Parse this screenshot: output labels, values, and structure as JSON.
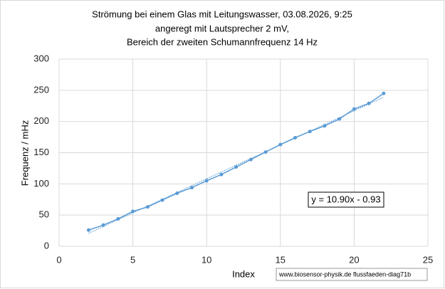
{
  "chart_data": {
    "type": "line",
    "title": [
      "Strömung bei einem Glas mit  Leitungswasser, 03.08.2026, 9:25",
      "angeregt mit Lautsprecher 2 mV,",
      "Bereich der zweiten Schumannfrequenz 14 Hz"
    ],
    "x_label": "Index",
    "y_label": "Frequenz / mHz",
    "x": [
      2,
      3,
      4,
      5,
      6,
      7,
      8,
      9,
      10,
      11,
      12,
      13,
      14,
      15,
      16,
      17,
      18,
      19,
      20,
      21,
      22
    ],
    "series": [
      {
        "color": "#5b9bd5",
        "values": [
          26,
          34,
          44,
          56,
          63,
          74,
          85,
          94,
          105,
          115,
          127,
          139,
          151,
          163,
          174,
          184,
          193,
          204,
          220,
          229,
          245
        ]
      }
    ],
    "trendline": {
      "slope": 10.9,
      "intercept": -0.93,
      "label": "y = 10.90x - 0.93"
    },
    "xlim": [
      0,
      25
    ],
    "xticks": [
      0,
      5,
      10,
      15,
      20,
      25
    ],
    "ylim": [
      0,
      300
    ],
    "yticks": [
      0,
      50,
      100,
      150,
      200,
      250,
      300
    ],
    "grid": true,
    "footer": "www.biosensor-physik.de  flussfaeden-diag71b"
  }
}
